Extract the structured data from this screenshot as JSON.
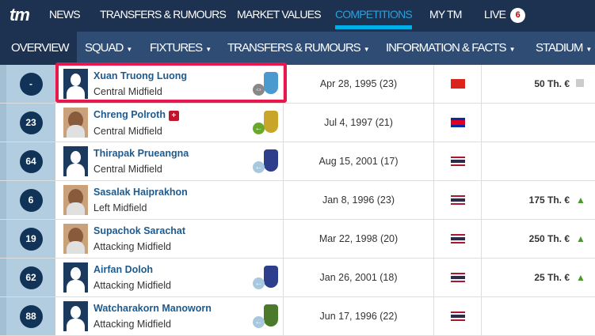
{
  "topnav": {
    "logo": "tm",
    "items": [
      "NEWS",
      "TRANSFERS & RUMOURS",
      "MARKET VALUES",
      "COMPETITIONS",
      "MY TM",
      "LIVE"
    ],
    "active": "COMPETITIONS",
    "live_badge": "6"
  },
  "subnav": {
    "items": [
      "OVERVIEW",
      "SQUAD",
      "FIXTURES",
      "TRANSFERS & RUMOURS",
      "INFORMATION & FACTS",
      "STADIUM"
    ]
  },
  "players": [
    {
      "number": "-",
      "name": "Xuan Truong Luong",
      "position": "Central Midfield",
      "dob": "Apr 28, 1995 (23)",
      "nation": "vietnam",
      "value": "50 Th. €",
      "trend": "none",
      "arrow": "loan",
      "photo": "placeholder",
      "crest": "sky",
      "injury": false
    },
    {
      "number": "23",
      "name": "Chreng Polroth",
      "position": "Central Midfield",
      "dob": "Jul 4, 1997 (21)",
      "nation": "cambodia",
      "value": "",
      "trend": "",
      "arrow": "joined",
      "photo": "real",
      "crest": "gold",
      "injury": true
    },
    {
      "number": "64",
      "name": "Thirapak Prueangna",
      "position": "Central Midfield",
      "dob": "Aug 15, 2001 (17)",
      "nation": "thailand",
      "value": "",
      "trend": "",
      "arrow": "youth",
      "photo": "placeholder",
      "crest": "blue",
      "injury": false
    },
    {
      "number": "6",
      "name": "Sasalak Haiprakhon",
      "position": "Left Midfield",
      "dob": "Jan 8, 1996 (23)",
      "nation": "thailand",
      "value": "175 Th. €",
      "trend": "up",
      "arrow": "",
      "photo": "real",
      "crest": "",
      "injury": false
    },
    {
      "number": "19",
      "name": "Supachok Sarachat",
      "position": "Attacking Midfield",
      "dob": "Mar 22, 1998 (20)",
      "nation": "thailand",
      "value": "250 Th. €",
      "trend": "up",
      "arrow": "",
      "photo": "real",
      "crest": "",
      "injury": false
    },
    {
      "number": "62",
      "name": "Airfan Doloh",
      "position": "Attacking Midfield",
      "dob": "Jan 26, 2001 (18)",
      "nation": "thailand",
      "value": "25 Th. €",
      "trend": "up",
      "arrow": "youth",
      "photo": "placeholder",
      "crest": "blue",
      "injury": false
    },
    {
      "number": "88",
      "name": "Watcharakorn Manoworn",
      "position": "Attacking Midfield",
      "dob": "Jun 17, 1996 (22)",
      "nation": "thailand",
      "value": "",
      "trend": "",
      "arrow": "youth",
      "photo": "placeholder",
      "crest": "green",
      "injury": false
    }
  ],
  "colors": {
    "nav": "#1d3150",
    "subnav": "#2f4d74",
    "active": "#00aee8",
    "highlight": "#e8184f",
    "trend_up": "#4a9a2a"
  }
}
